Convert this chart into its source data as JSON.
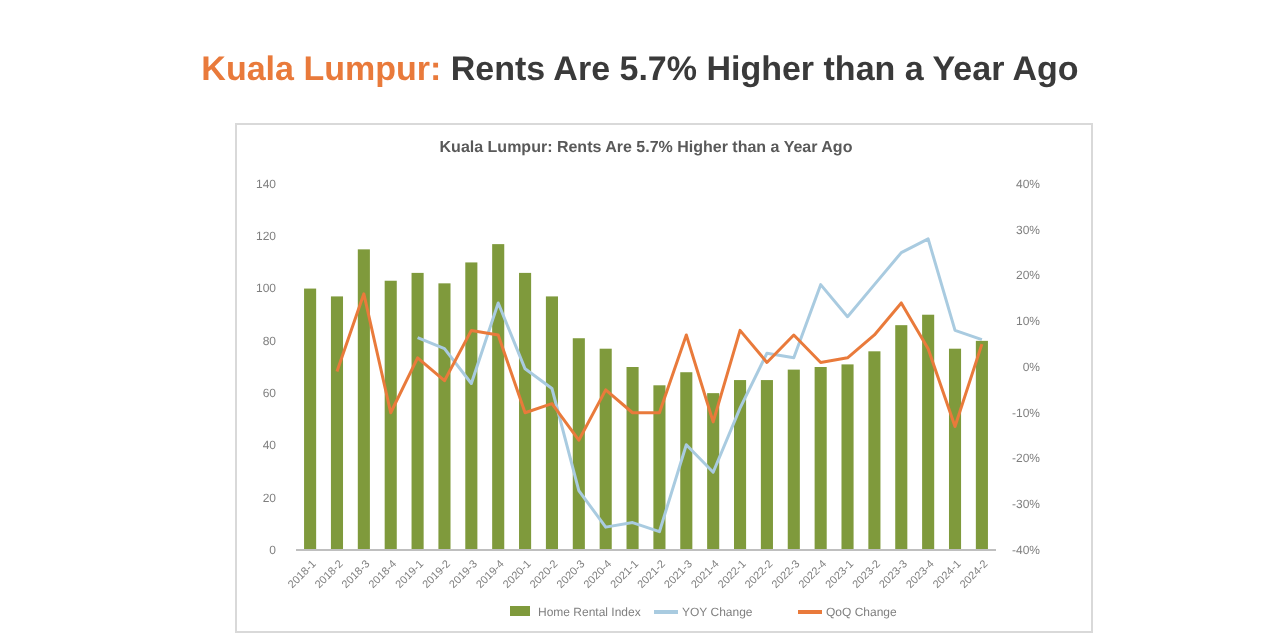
{
  "chart_data": {
    "type": "bar",
    "title": "Kuala Lumpur: Rents Are 5.7% Higher than a Year Ago",
    "subtitle": "Kuala Lumpur: Rents Are 5.7% Higher than a Year Ago",
    "categories": [
      "2018-1",
      "2018-2",
      "2018-3",
      "2018-4",
      "2019-1",
      "2019-2",
      "2019-3",
      "2019-4",
      "2020-1",
      "2020-2",
      "2020-3",
      "2020-4",
      "2021-1",
      "2021-2",
      "2021-3",
      "2021-4",
      "2022-1",
      "2022-2",
      "2022-3",
      "2022-4",
      "2023-1",
      "2023-2",
      "2023-3",
      "2023-4",
      "2024-1",
      "2024-2"
    ],
    "series": [
      {
        "name": "Home Rental Index",
        "color": "#7f9a3c",
        "values": [
          100,
          97,
          115,
          103,
          106,
          102,
          110,
          117,
          106,
          97,
          81,
          77,
          70,
          63,
          68,
          60,
          65,
          65,
          69,
          70,
          71,
          76,
          86,
          90,
          77,
          80
        ]
      },
      {
        "name": "YOY Change",
        "type": "line",
        "axis": "y2",
        "color": "#a9cbe0",
        "values": [
          null,
          null,
          null,
          null,
          6.4,
          4,
          -3.6,
          14,
          -0.4,
          -4.7,
          -27,
          -35,
          -34,
          -36,
          -17,
          -23,
          -9,
          3,
          2,
          18,
          11,
          18,
          25,
          28,
          8,
          6
        ]
      },
      {
        "name": "QoQ Change",
        "type": "line",
        "axis": "y2",
        "color": "#e97a3b",
        "values": [
          null,
          -1,
          16,
          -10,
          2,
          -3,
          8,
          7,
          -10,
          -8,
          -16,
          -5,
          -10,
          -10,
          7,
          -12,
          8,
          1,
          7,
          1,
          2,
          7,
          14,
          4,
          -13,
          5
        ]
      }
    ],
    "ylim": [
      0,
      140
    ],
    "yticks": [
      0,
      20,
      40,
      60,
      80,
      100,
      120,
      140
    ],
    "y2lim": [
      -40,
      40
    ],
    "y2ticks": [
      {
        "value": -40,
        "label": "-40%"
      },
      {
        "value": -30,
        "label": "-30%"
      },
      {
        "value": -20,
        "label": "-20%"
      },
      {
        "value": -10,
        "label": "-10%"
      },
      {
        "value": 0,
        "label": "0%"
      },
      {
        "value": 10,
        "label": "10%"
      },
      {
        "value": 20,
        "label": "20%"
      },
      {
        "value": 30,
        "label": "30%"
      },
      {
        "value": 40,
        "label": "40%"
      }
    ],
    "grid": false,
    "legend": "bottom",
    "marker": "none",
    "line_style": "solid"
  }
}
